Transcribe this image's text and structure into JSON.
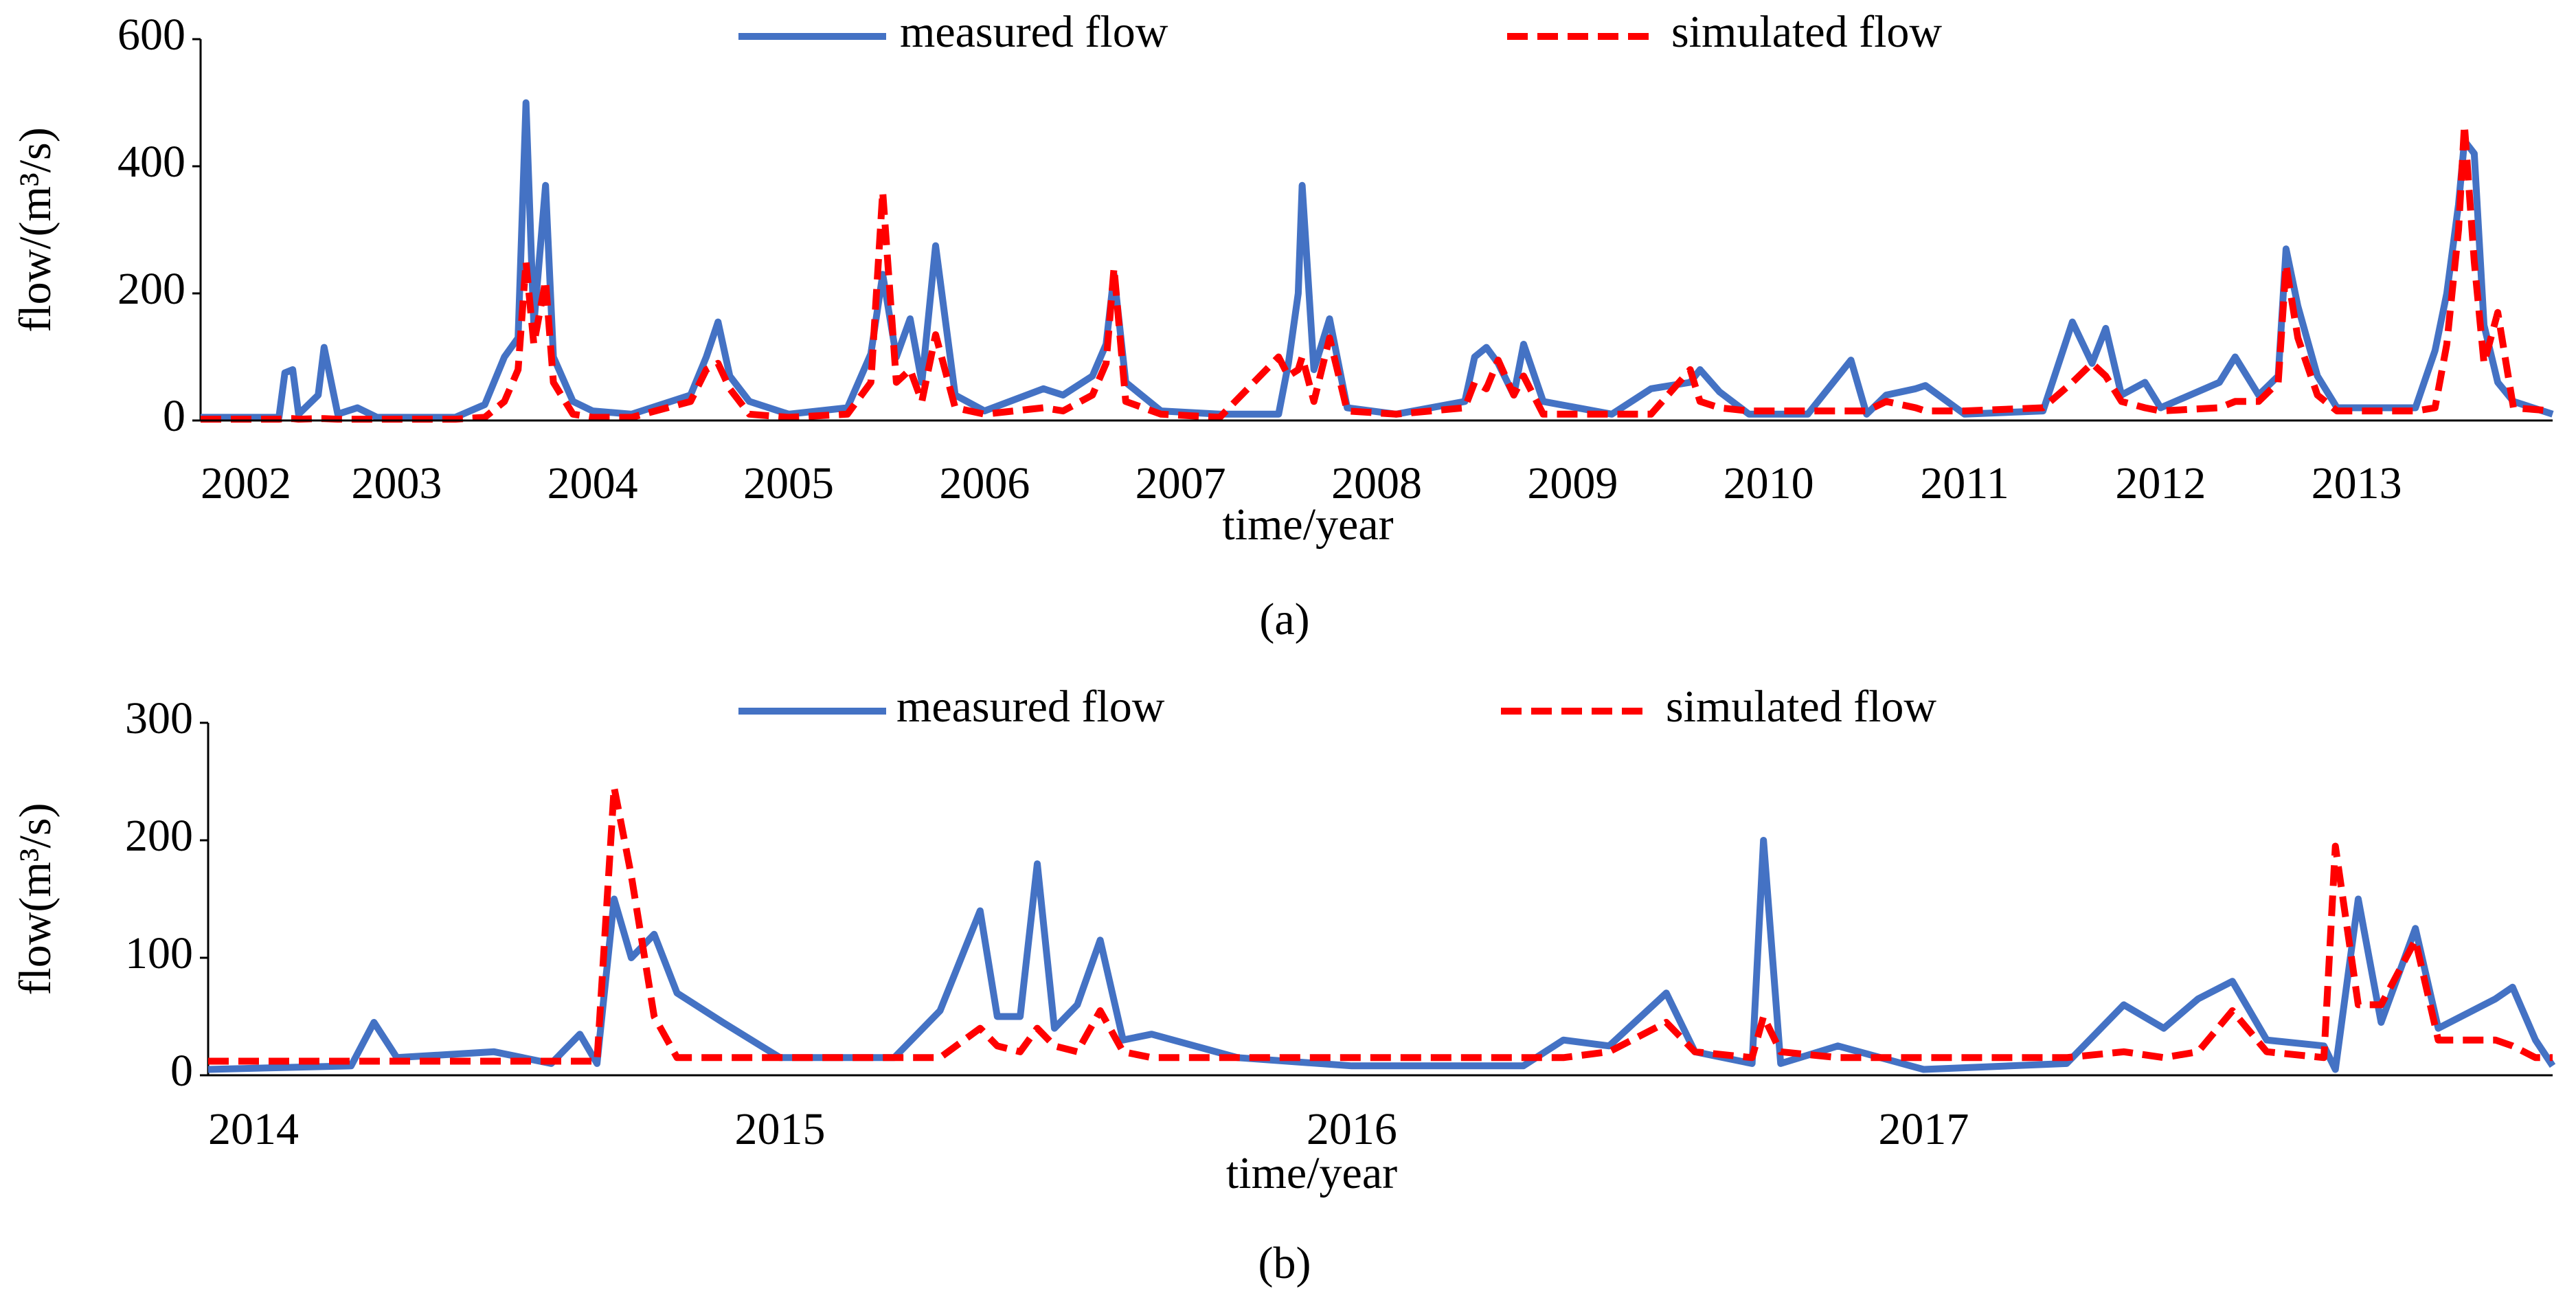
{
  "chart_data": [
    {
      "type": "line",
      "caption": "(a)",
      "xlabel": "time/year",
      "ylabel": "flow/(m³/s)",
      "xlim": [
        2002,
        2014
      ],
      "xticks": [
        2002,
        2003,
        2004,
        2005,
        2006,
        2007,
        2008,
        2009,
        2010,
        2011,
        2012,
        2013
      ],
      "ylim": [
        0,
        600
      ],
      "yticks": [
        0,
        200,
        400,
        600
      ],
      "legend": "top",
      "x": [
        2002.0,
        2002.4,
        2002.43,
        2002.47,
        2002.5,
        2002.6,
        2002.63,
        2002.7,
        2002.8,
        2002.9,
        2003.3,
        2003.45,
        2003.55,
        2003.62,
        2003.66,
        2003.7,
        2003.76,
        2003.8,
        2003.9,
        2004.0,
        2004.2,
        2004.5,
        2004.58,
        2004.64,
        2004.7,
        2004.8,
        2005.0,
        2005.3,
        2005.42,
        2005.48,
        2005.55,
        2005.62,
        2005.68,
        2005.75,
        2005.85,
        2006.0,
        2006.3,
        2006.4,
        2006.55,
        2006.62,
        2006.66,
        2006.72,
        2006.9,
        2007.2,
        2007.5,
        2007.55,
        2007.6,
        2007.62,
        2007.68,
        2007.76,
        2007.85,
        2008.1,
        2008.45,
        2008.5,
        2008.56,
        2008.62,
        2008.7,
        2008.75,
        2008.85,
        2009.2,
        2009.4,
        2009.6,
        2009.65,
        2009.75,
        2009.9,
        2010.2,
        2010.42,
        2010.5,
        2010.6,
        2010.75,
        2010.8,
        2011.0,
        2011.4,
        2011.55,
        2011.65,
        2011.72,
        2011.8,
        2011.92,
        2012.0,
        2012.3,
        2012.38,
        2012.5,
        2012.6,
        2012.64,
        2012.7,
        2012.8,
        2012.9,
        2013.3,
        2013.4,
        2013.46,
        2013.52,
        2013.55,
        2013.6,
        2013.65,
        2013.72,
        2013.8,
        2014.0
      ],
      "series": [
        {
          "name": "measured flow",
          "color": "#4472c4",
          "dash": false,
          "values": [
            5,
            5,
            75,
            80,
            10,
            40,
            115,
            10,
            20,
            5,
            5,
            25,
            100,
            130,
            500,
            150,
            370,
            100,
            30,
            15,
            10,
            40,
            100,
            155,
            70,
            30,
            10,
            20,
            105,
            230,
            100,
            160,
            60,
            275,
            40,
            15,
            50,
            40,
            70,
            120,
            230,
            60,
            15,
            10,
            10,
            90,
            200,
            370,
            80,
            160,
            20,
            10,
            30,
            100,
            115,
            90,
            40,
            120,
            30,
            10,
            50,
            60,
            80,
            45,
            10,
            10,
            95,
            10,
            40,
            50,
            55,
            10,
            15,
            155,
            90,
            145,
            40,
            60,
            20,
            60,
            100,
            40,
            70,
            270,
            180,
            70,
            20,
            20,
            110,
            200,
            340,
            440,
            420,
            150,
            60,
            30,
            10
          ]
        },
        {
          "name": "simulated flow",
          "color": "#ff0000",
          "dash": true,
          "values": [
            2,
            2,
            3,
            3,
            2,
            3,
            3,
            2,
            2,
            2,
            2,
            5,
            30,
            80,
            250,
            120,
            220,
            60,
            10,
            5,
            5,
            30,
            80,
            90,
            50,
            10,
            5,
            10,
            60,
            360,
            60,
            80,
            30,
            135,
            20,
            10,
            20,
            15,
            40,
            90,
            240,
            30,
            10,
            5,
            100,
            70,
            80,
            100,
            30,
            130,
            15,
            10,
            20,
            60,
            50,
            95,
            40,
            70,
            10,
            10,
            10,
            80,
            30,
            20,
            15,
            15,
            15,
            15,
            30,
            20,
            15,
            15,
            20,
            60,
            90,
            70,
            30,
            20,
            15,
            20,
            30,
            30,
            60,
            245,
            130,
            40,
            15,
            15,
            20,
            120,
            300,
            465,
            250,
            90,
            170,
            20,
            15
          ]
        }
      ]
    },
    {
      "type": "line",
      "caption": "(b)",
      "xlabel": "time/year",
      "ylabel": "flow(m³/s)",
      "xlim": [
        2014,
        2018.1
      ],
      "xticks": [
        2014,
        2015,
        2016,
        2017
      ],
      "ylim": [
        0,
        300
      ],
      "yticks": [
        0,
        100,
        200,
        300
      ],
      "legend": "top",
      "x": [
        2014.0,
        2014.25,
        2014.29,
        2014.33,
        2014.5,
        2014.6,
        2014.65,
        2014.68,
        2014.71,
        2014.74,
        2014.78,
        2014.82,
        2014.9,
        2015.0,
        2015.2,
        2015.28,
        2015.35,
        2015.38,
        2015.42,
        2015.45,
        2015.48,
        2015.52,
        2015.56,
        2015.6,
        2015.65,
        2015.8,
        2016.0,
        2016.3,
        2016.37,
        2016.45,
        2016.55,
        2016.6,
        2016.7,
        2016.72,
        2016.75,
        2016.85,
        2017.0,
        2017.25,
        2017.35,
        2017.42,
        2017.48,
        2017.54,
        2017.6,
        2017.7,
        2017.72,
        2017.76,
        2017.8,
        2017.86,
        2017.9,
        2018.0,
        2018.03,
        2018.07,
        2018.1
      ],
      "series": [
        {
          "name": "measured flow",
          "color": "#4472c4",
          "dash": false,
          "values": [
            5,
            8,
            45,
            15,
            20,
            10,
            35,
            10,
            150,
            100,
            120,
            70,
            45,
            15,
            15,
            55,
            140,
            50,
            50,
            180,
            40,
            60,
            115,
            30,
            35,
            15,
            8,
            8,
            30,
            25,
            70,
            20,
            10,
            200,
            10,
            25,
            5,
            10,
            60,
            40,
            65,
            80,
            30,
            25,
            5,
            150,
            45,
            125,
            40,
            65,
            75,
            30,
            8
          ]
        },
        {
          "name": "simulated flow",
          "color": "#ff0000",
          "dash": true,
          "values": [
            12,
            12,
            12,
            12,
            12,
            12,
            12,
            12,
            245,
            170,
            50,
            15,
            15,
            15,
            15,
            15,
            40,
            25,
            20,
            40,
            25,
            20,
            55,
            20,
            15,
            15,
            15,
            15,
            15,
            20,
            45,
            20,
            15,
            50,
            20,
            15,
            15,
            15,
            20,
            15,
            20,
            55,
            20,
            15,
            195,
            60,
            60,
            115,
            30,
            30,
            25,
            15,
            15
          ]
        }
      ]
    }
  ]
}
